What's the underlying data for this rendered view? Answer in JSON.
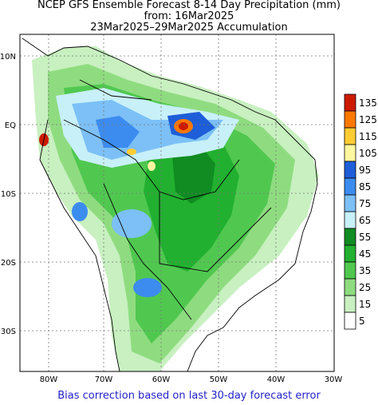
{
  "header": {
    "line1": "NCEP GFS Ensemble Forecast 8-14 Day Precipitation (mm)",
    "line2": "from: 16Mar2025",
    "line3": "23Mar2025–29Mar2025 Accumulation"
  },
  "footer": {
    "note": "Bias correction based on last 30-day forecast error"
  },
  "axes": {
    "lat_ticks": [
      "10N",
      "EQ",
      "10S",
      "20S",
      "30S"
    ],
    "lon_ticks": [
      "80W",
      "70W",
      "60W",
      "50W",
      "40W",
      "30W"
    ]
  },
  "legend": {
    "levels": [
      {
        "label": "135",
        "color": "#cc1a00"
      },
      {
        "label": "125",
        "color": "#ff7800"
      },
      {
        "label": "115",
        "color": "#ffcc33"
      },
      {
        "label": "105",
        "color": "#fff7a0"
      },
      {
        "label": "95",
        "color": "#1e5ed8"
      },
      {
        "label": "85",
        "color": "#3c8cf0"
      },
      {
        "label": "75",
        "color": "#7cc0f7"
      },
      {
        "label": "65",
        "color": "#c8f0f8"
      },
      {
        "label": "55",
        "color": "#108c22"
      },
      {
        "label": "45",
        "color": "#22b030"
      },
      {
        "label": "35",
        "color": "#50c850"
      },
      {
        "label": "25",
        "color": "#8fdc80"
      },
      {
        "label": "15",
        "color": "#c8f0c0"
      },
      {
        "label": "5",
        "color": "#ffffff"
      }
    ]
  }
}
